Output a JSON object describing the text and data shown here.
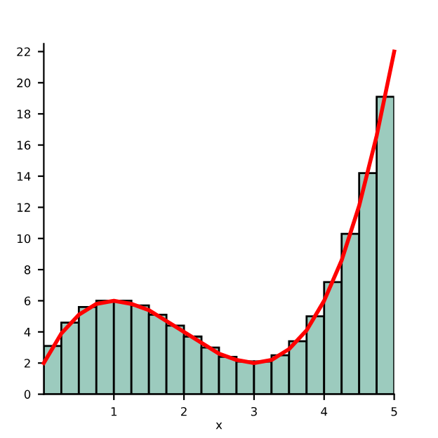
{
  "chart_data": {
    "type": "histogram",
    "xlabel": "x",
    "bins": [
      0,
      0.25,
      0.5,
      0.75,
      1,
      1.25,
      1.5,
      1.75,
      2,
      2.25,
      2.5,
      2.75,
      3,
      3.25,
      3.5,
      3.75,
      4,
      4.25,
      4.5,
      4.75,
      5
    ],
    "values": [
      3.1,
      4.6,
      5.6,
      6.0,
      6.0,
      5.7,
      5.1,
      4.4,
      3.7,
      3.0,
      2.4,
      2.1,
      2.1,
      2.5,
      3.4,
      5.0,
      7.2,
      10.3,
      14.2,
      19.1
    ],
    "color": "#9ccbbe",
    "series": [
      {
        "type": "line",
        "color": "#ff0000",
        "x": [
          0,
          0.25,
          0.5,
          0.75,
          1,
          1.25,
          1.5,
          1.75,
          2,
          2.25,
          2.5,
          2.75,
          3,
          3.25,
          3.5,
          3.75,
          4,
          4.25,
          4.5,
          4.75,
          5
        ],
        "values": [
          2.0,
          3.9,
          5.1,
          5.8,
          6.0,
          5.8,
          5.4,
          4.7,
          4.0,
          3.3,
          2.6,
          2.2,
          2.0,
          2.2,
          2.9,
          4.1,
          6.0,
          8.6,
          12.1,
          16.6,
          22.0
        ]
      }
    ],
    "xlim": [
      0,
      5
    ],
    "ylim": [
      0,
      22.5
    ],
    "xticks": [
      1,
      2,
      3,
      4,
      5
    ],
    "yticks": [
      0,
      2,
      4,
      6,
      8,
      10,
      12,
      14,
      16,
      18,
      20,
      22
    ],
    "grid": false,
    "legend": false,
    "marker": "none",
    "line_style": "solid"
  }
}
